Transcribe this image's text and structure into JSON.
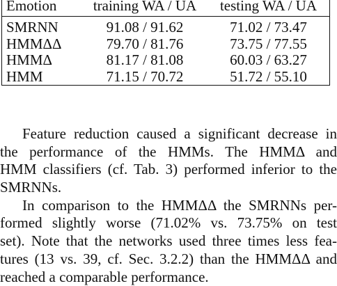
{
  "table": {
    "header": [
      "Emotion",
      "training WA / UA",
      "testing WA / UA"
    ],
    "rows": [
      [
        "SMRNN",
        "91.08 / 91.62",
        "71.02 / 73.47"
      ],
      [
        "HMMΔΔ",
        "79.70 / 81.76",
        "73.75 / 77.55"
      ],
      [
        "HMMΔ",
        "81.17 / 81.08",
        "60.03 / 63.27"
      ],
      [
        "HMM",
        "71.15 / 70.72",
        "51.72 / 55.10"
      ]
    ]
  },
  "paragraphs": [
    {
      "lines": [
        "Feature reduction caused a significant decrease in",
        "the performance of the HMMs.  The HMMΔ and",
        "HMM classifiers (cf. Tab. 3) performed inferior to the",
        "SMRNNs."
      ]
    },
    {
      "lines": [
        "In comparison to the HMMΔΔ the SMRNNs per-",
        "formed slightly worse (71.02% vs.  73.75% on test",
        "set). Note that the networks used three times less fea-",
        "tures (13 vs. 39, cf. Sec. 3.2.2) than the HMMΔΔ and",
        "reached a comparable performance."
      ]
    }
  ]
}
